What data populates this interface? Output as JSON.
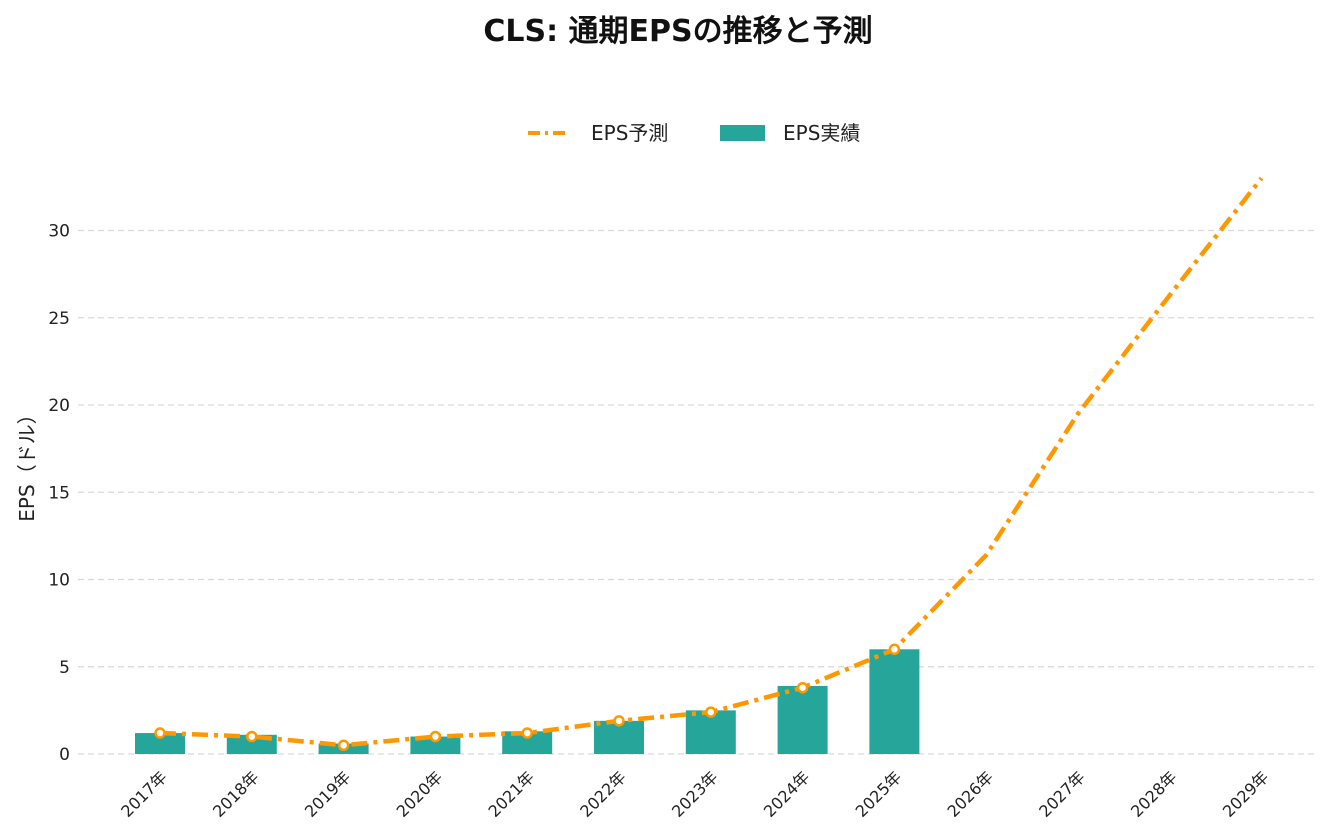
{
  "chart_data": {
    "type": "bar",
    "title": "CLS: 通期EPSの推移と予測",
    "xlabel": "",
    "ylabel": "EPS（ドル）",
    "categories": [
      "2017年",
      "2018年",
      "2019年",
      "2020年",
      "2021年",
      "2022年",
      "2023年",
      "2024年",
      "2025年",
      "2026年",
      "2027年",
      "2028年",
      "2029年"
    ],
    "ylim": [
      0,
      33
    ],
    "yticks": [
      0,
      5,
      10,
      15,
      20,
      25,
      30
    ],
    "grid": true,
    "legend_position": "top-center",
    "series": [
      {
        "name": "EPS予測",
        "kind": "line",
        "style": "dash-dot",
        "color": "#ff9800",
        "values": [
          1.2,
          1.0,
          0.5,
          1.0,
          1.2,
          1.9,
          2.4,
          3.8,
          6.0,
          11.4,
          19.5,
          26.3,
          33.0
        ]
      },
      {
        "name": "EPS実績",
        "kind": "bar",
        "color": "#26a69a",
        "values": [
          1.2,
          1.1,
          0.6,
          1.0,
          1.3,
          1.9,
          2.5,
          3.9,
          6.0,
          null,
          null,
          null,
          null
        ]
      }
    ]
  },
  "colors": {
    "bar": "#26a69a",
    "line": "#ff9800",
    "grid": "#d9d9d9"
  }
}
